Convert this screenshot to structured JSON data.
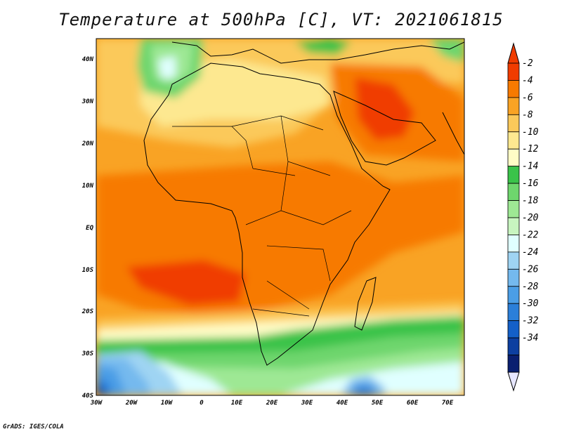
{
  "title": "Temperature at 500hPa [C], VT: 2021061815",
  "credit": "GrADS: IGES/COLA",
  "map": {
    "lat_labels": [
      "40N",
      "30N",
      "20N",
      "10N",
      "EQ",
      "10S",
      "20S",
      "30S",
      "40S"
    ],
    "lon_labels": [
      "30W",
      "20W",
      "10W",
      "0",
      "10E",
      "20E",
      "30E",
      "40E",
      "50E",
      "60E",
      "70E"
    ],
    "lat_range": [
      -40,
      45
    ],
    "lon_range": [
      -30,
      75
    ]
  },
  "colorbar": {
    "labels": [
      "-2",
      "-4",
      "-6",
      "-8",
      "-10",
      "-12",
      "-14",
      "-16",
      "-18",
      "-20",
      "-22",
      "-24",
      "-26",
      "-28",
      "-30",
      "-32",
      "-34"
    ],
    "colors": [
      "#f03c00",
      "#f77a00",
      "#f9a324",
      "#fbc95a",
      "#fde890",
      "#fffcc6",
      "#3ac34a",
      "#6ed66d",
      "#9ee894",
      "#c8f5c0",
      "#e0ffff",
      "#9fd4f3",
      "#74b9ee",
      "#4b9ee6",
      "#2b7fd9",
      "#1460c8",
      "#0d3fa0",
      "#0a1f70"
    ]
  }
}
